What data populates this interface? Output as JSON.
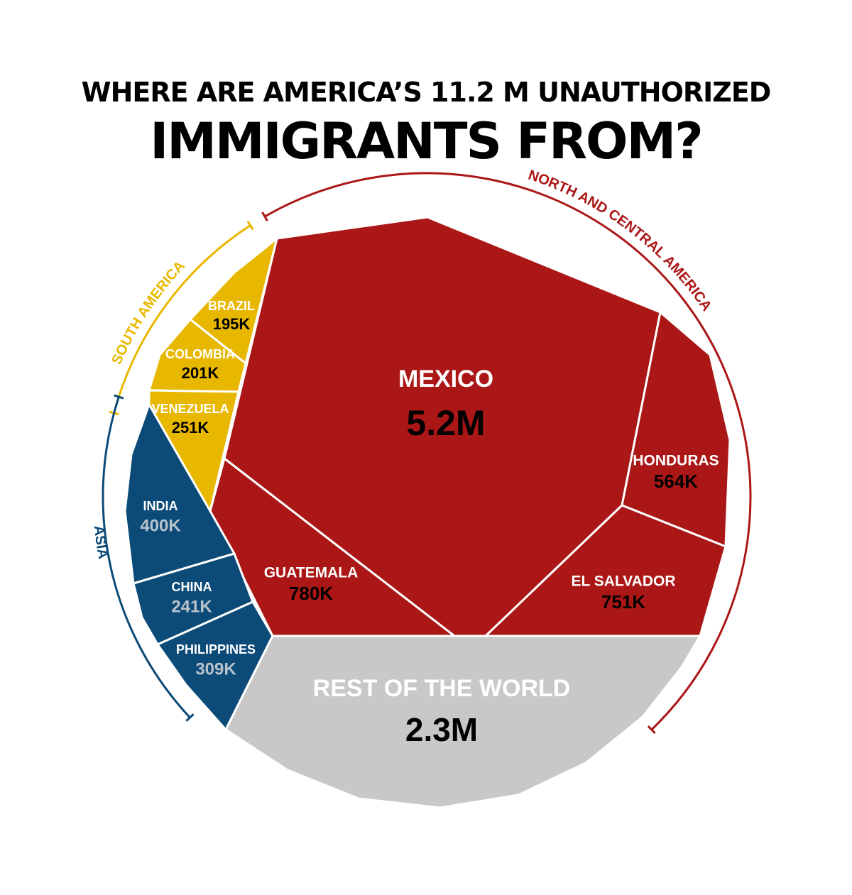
{
  "chart_data": {
    "type": "treemap",
    "title_line1": "WHERE ARE AMERICA’S 11.2 M UNAUTHORIZED",
    "title_line2": "IMMIGRANTS FROM?",
    "groups": [
      {
        "name": "NORTH AND CENTRAL AMERICA",
        "color": "#ab1716"
      },
      {
        "name": "SOUTH AMERICA",
        "color": "#e8b800"
      },
      {
        "name": "ASIA",
        "color": "#0c4a78"
      }
    ],
    "rest_color": "#c8c8c8",
    "cells": [
      {
        "id": "mexico",
        "label": "MEXICO",
        "value_label": "5.2M",
        "value": 5200000,
        "group": "NORTH AND CENTRAL AMERICA"
      },
      {
        "id": "honduras",
        "label": "HONDURAS",
        "value_label": "564K",
        "value": 564000,
        "group": "NORTH AND CENTRAL AMERICA"
      },
      {
        "id": "el-salvador",
        "label": "EL SALVADOR",
        "value_label": "751K",
        "value": 751000,
        "group": "NORTH AND CENTRAL AMERICA"
      },
      {
        "id": "guatemala",
        "label": "GUATEMALA",
        "value_label": "780K",
        "value": 780000,
        "group": "NORTH AND CENTRAL AMERICA"
      },
      {
        "id": "brazil",
        "label": "BRAZIL",
        "value_label": "195K",
        "value": 195000,
        "group": "SOUTH AMERICA"
      },
      {
        "id": "colombia",
        "label": "COLOMBIA",
        "value_label": "201K",
        "value": 201000,
        "group": "SOUTH AMERICA"
      },
      {
        "id": "venezuela",
        "label": "VENEZUELA",
        "value_label": "251K",
        "value": 251000,
        "group": "SOUTH AMERICA"
      },
      {
        "id": "india",
        "label": "INDIA",
        "value_label": "400K",
        "value": 400000,
        "group": "ASIA"
      },
      {
        "id": "china",
        "label": "CHINA",
        "value_label": "241K",
        "value": 241000,
        "group": "ASIA"
      },
      {
        "id": "philippines",
        "label": "PHILIPPINES",
        "value_label": "309K",
        "value": 309000,
        "group": "ASIA"
      },
      {
        "id": "rest",
        "label": "REST OF THE WORLD",
        "value_label": "2.3M",
        "value": 2300000,
        "group": ""
      }
    ]
  }
}
